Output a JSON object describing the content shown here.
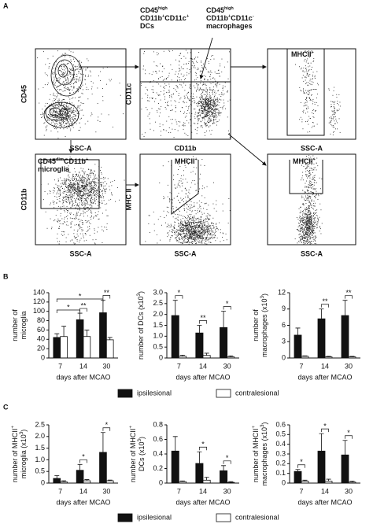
{
  "panel_labels": [
    "A",
    "B",
    "C"
  ],
  "flow": {
    "plots": [
      {
        "xlabel": "SSC-A",
        "ylabel": "CD45"
      },
      {
        "xlabel": "CD11b",
        "ylabel": "CD11c"
      },
      {
        "xlabel": "SSC-A",
        "gate": [
          [
            "MHCII",
            {
              "sup": "+"
            }
          ]
        ]
      },
      {
        "xlabel": "SSC-A",
        "ylabel": "CD11b",
        "gate": [
          [
            "CD45",
            {
              "sup": "dim"
            },
            "CD11b",
            {
              "sup": "+"
            }
          ],
          [
            "microglia"
          ]
        ]
      },
      {
        "xlabel": "SSC-A",
        "ylabel": "MHC II",
        "gate": [
          [
            "MHCII",
            {
              "sup": "+"
            }
          ]
        ]
      },
      {
        "xlabel": "SSC-A",
        "gate": [
          [
            "MHCII",
            {
              "sup": "+"
            }
          ]
        ]
      }
    ],
    "populations": [
      [
        [
          "CD45",
          {
            "sup": "high"
          }
        ],
        [
          "CD11b",
          {
            "sup": "+"
          },
          "CD11c",
          {
            "sup": "+"
          }
        ],
        [
          "DCs"
        ]
      ],
      [
        [
          "CD45",
          {
            "sup": "high"
          }
        ],
        [
          "CD11b",
          {
            "sup": "+"
          },
          "CD11c",
          {
            "sup": "-"
          }
        ],
        [
          "macrophages"
        ]
      ]
    ]
  },
  "chart_data": [
    {
      "type": "bar",
      "ylabel": [
        [
          "number of"
        ],
        [
          "microglia"
        ]
      ],
      "xlabel": "days after MCAO",
      "categories": [
        "7",
        "14",
        "30"
      ],
      "ylim": [
        0,
        140
      ],
      "yticks": [
        0,
        20,
        40,
        60,
        80,
        100,
        120,
        140
      ],
      "series": [
        {
          "name": "ipsilesional",
          "color": "#111111",
          "values": [
            44,
            82,
            97
          ],
          "errors": [
            8,
            14,
            27
          ]
        },
        {
          "name": "contralesional",
          "color": "#ffffff",
          "values": [
            46,
            46,
            39
          ],
          "errors": [
            22,
            14,
            5
          ]
        }
      ],
      "annotations": [
        "*",
        "*",
        "**",
        "**"
      ]
    },
    {
      "type": "bar",
      "ylabel": [
        [
          "number of DCs (x10",
          {
            "sup": "3"
          },
          ")"
        ]
      ],
      "xlabel": "days after MCAO",
      "categories": [
        "7",
        "14",
        "30"
      ],
      "ylim": [
        0,
        3
      ],
      "yticks": [
        0,
        0.5,
        {
          "value": 1,
          "label": "1.0"
        },
        1.5,
        {
          "value": 2,
          "label": "2.0"
        },
        2.5,
        {
          "value": 3,
          "label": "3.0"
        }
      ],
      "series": [
        {
          "name": "ipsilesional",
          "color": "#111111",
          "values": [
            1.95,
            1.15,
            1.4
          ],
          "errors": [
            0.7,
            0.35,
            0.75
          ]
        },
        {
          "name": "contralesional",
          "color": "#ffffff",
          "values": [
            0.08,
            0.12,
            0.05
          ],
          "errors": [
            0.05,
            0.1,
            0.05
          ]
        }
      ],
      "annotations": [
        "*",
        "**",
        "*"
      ]
    },
    {
      "type": "bar",
      "ylabel": [
        [
          "number of"
        ],
        [
          "macrophages (x10",
          {
            "sup": "3"
          },
          ")"
        ]
      ],
      "xlabel": "days after MCAO",
      "categories": [
        "7",
        "14",
        "30"
      ],
      "ylim": [
        0,
        12
      ],
      "yticks": [
        0,
        3,
        6,
        9,
        12
      ],
      "series": [
        {
          "name": "ipsilesional",
          "color": "#111111",
          "values": [
            4.2,
            7.2,
            7.8
          ],
          "errors": [
            1.3,
            1.8,
            2.8
          ]
        },
        {
          "name": "contralesional",
          "color": "#ffffff",
          "values": [
            0.3,
            0.2,
            0.2
          ],
          "errors": [
            0.1,
            0.1,
            0.1
          ]
        }
      ],
      "annotations": [
        "**",
        "**"
      ]
    },
    {
      "type": "bar",
      "ylabel": [
        [
          "number of MHCII",
          {
            "sup": "+"
          }
        ],
        [
          "microglia (x10",
          {
            "sup": "3"
          },
          ")"
        ]
      ],
      "xlabel": "days after MCAO",
      "categories": [
        "7",
        "14",
        "30"
      ],
      "ylim": [
        0,
        2.5
      ],
      "yticks": [
        0,
        0.5,
        {
          "value": 1,
          "label": "1.0"
        },
        1.5,
        {
          "value": 2,
          "label": "2.0"
        },
        2.5
      ],
      "series": [
        {
          "name": "ipsilesional",
          "color": "#111111",
          "values": [
            0.2,
            0.55,
            1.32
          ],
          "errors": [
            0.12,
            0.25,
            0.85
          ]
        },
        {
          "name": "contralesional",
          "color": "#ffffff",
          "values": [
            0.05,
            0.1,
            0.1
          ],
          "errors": [
            0.05,
            0.05,
            0.03
          ]
        }
      ],
      "annotations": [
        "*",
        "*"
      ]
    },
    {
      "type": "bar",
      "ylabel": [
        [
          "number of MHCII",
          {
            "sup": "+"
          }
        ],
        [
          "DCs (x10",
          {
            "sup": "3"
          },
          ")"
        ]
      ],
      "xlabel": "days after MCAO",
      "categories": [
        "7",
        "14",
        "30"
      ],
      "ylim": [
        0,
        0.8
      ],
      "yticks": [
        0,
        0.2,
        0.4,
        0.6,
        0.8
      ],
      "series": [
        {
          "name": "ipsilesional",
          "color": "#111111",
          "values": [
            0.44,
            0.27,
            0.17
          ],
          "errors": [
            0.2,
            0.16,
            0.07
          ]
        },
        {
          "name": "contralesional",
          "color": "#ffffff",
          "values": [
            0.02,
            0.04,
            0.01
          ],
          "errors": [
            0.01,
            0.04,
            0.01
          ]
        }
      ],
      "annotations": [
        "*",
        "*"
      ]
    },
    {
      "type": "bar",
      "ylabel": [
        [
          "number of MHCII",
          {
            "sup": "+"
          }
        ],
        [
          "macrophages (x10",
          {
            "sup": "3"
          },
          ")"
        ]
      ],
      "xlabel": "days after MCAO",
      "categories": [
        "7",
        "14",
        "30"
      ],
      "ylim": [
        0,
        0.6
      ],
      "yticks": [
        0,
        0.1,
        0.2,
        0.3,
        0.4,
        0.5,
        0.6
      ],
      "series": [
        {
          "name": "ipsilesional",
          "color": "#111111",
          "values": [
            0.12,
            0.33,
            0.29
          ],
          "errors": [
            0.02,
            0.18,
            0.15
          ]
        },
        {
          "name": "contralesional",
          "color": "#ffffff",
          "values": [
            0.02,
            0.02,
            0.01
          ],
          "errors": [
            0.01,
            0.02,
            0.01
          ]
        }
      ],
      "annotations": [
        "*",
        "*",
        "*"
      ]
    }
  ]
}
